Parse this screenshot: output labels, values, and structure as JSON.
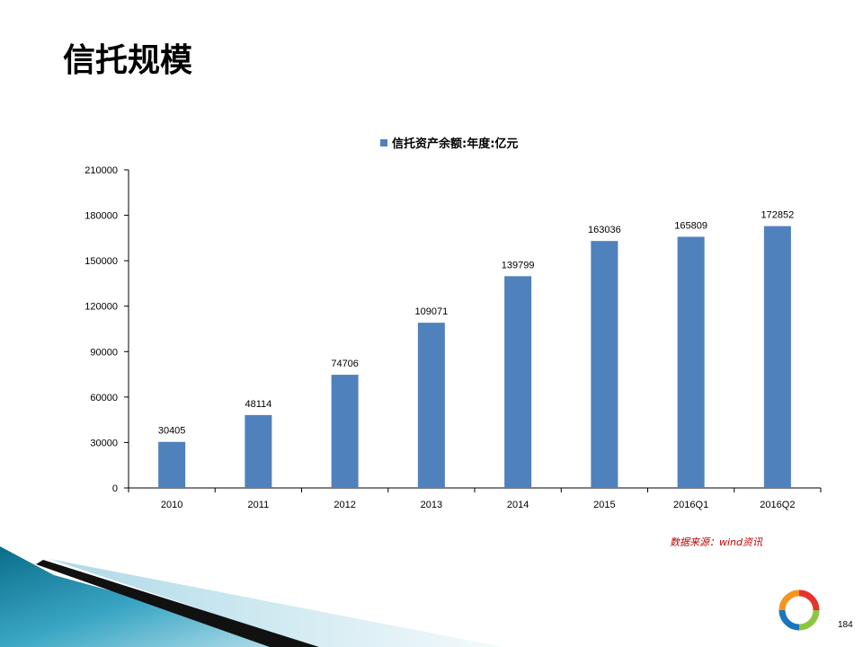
{
  "slide": {
    "title": "信托规模",
    "source_note": "数据来源：wind资讯",
    "page_number": "184"
  },
  "chart_data": {
    "type": "bar",
    "categories": [
      "2010",
      "2011",
      "2012",
      "2013",
      "2014",
      "2015",
      "2016Q1",
      "2016Q2"
    ],
    "series": [
      {
        "name": "信托资产余额:年度:亿元",
        "values": [
          30405,
          48114,
          74706,
          109071,
          139799,
          163036,
          165809,
          172852
        ],
        "color": "#4F81BD"
      }
    ],
    "data_labels": [
      "30405",
      "48114",
      "74706",
      "109071",
      "139799",
      "163036",
      "165809",
      "172852"
    ],
    "ylim": [
      0,
      210000
    ],
    "yticks": [
      "0",
      "30000",
      "60000",
      "90000",
      "120000",
      "150000",
      "180000",
      "210000"
    ],
    "xlabel": "",
    "ylabel": "",
    "grid": false,
    "legend_position": "top"
  },
  "colors": {
    "bar": "#4F81BD",
    "source_note": "#C00000"
  }
}
